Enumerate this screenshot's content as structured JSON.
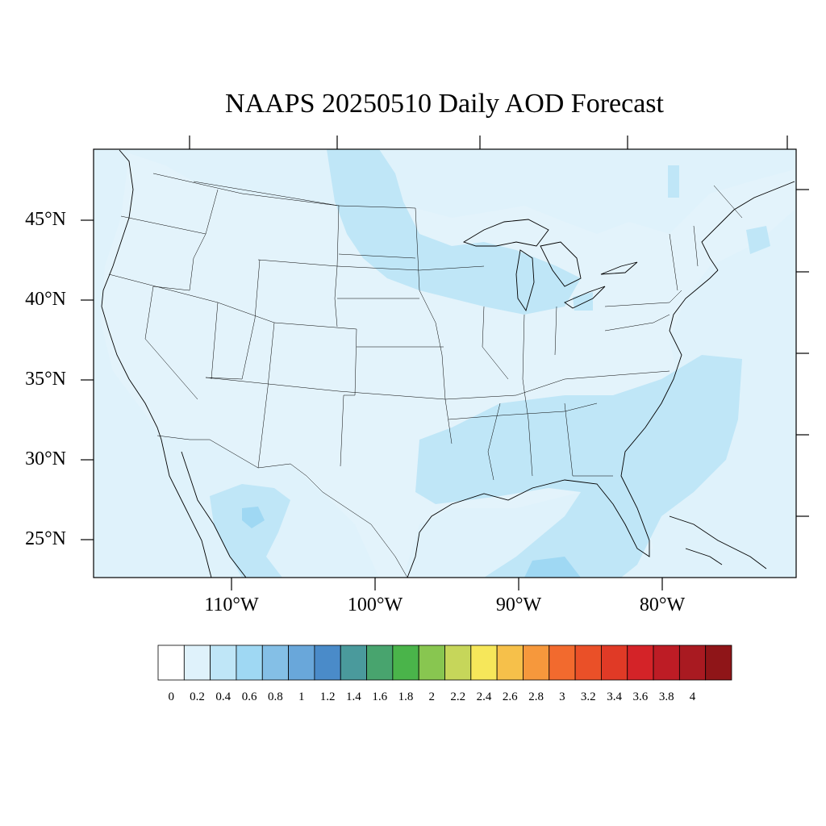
{
  "title": "NAAPS 20250510 Daily AOD Forecast",
  "lat_labels": [
    "45°N",
    "40°N",
    "35°N",
    "30°N",
    "25°N"
  ],
  "lon_labels": [
    "110°W",
    "100°W",
    "90°W",
    "80°W"
  ],
  "colorbar": {
    "labels": [
      "0",
      "0.2",
      "0.4",
      "0.6",
      "0.8",
      "1",
      "1.2",
      "1.4",
      "1.6",
      "1.8",
      "2",
      "2.2",
      "2.4",
      "2.6",
      "2.8",
      "3",
      "3.2",
      "3.4",
      "3.6",
      "3.8",
      "4"
    ],
    "colors": [
      "#ffffff",
      "#dff2fb",
      "#bfe6f7",
      "#9fd8f3",
      "#84bfe6",
      "#69a7da",
      "#4a8bc9",
      "#4a9a9c",
      "#48a46e",
      "#4ab44a",
      "#88c650",
      "#c6d65a",
      "#f6e75a",
      "#f6c04a",
      "#f6983c",
      "#f26a2e",
      "#ea5028",
      "#e03a26",
      "#d42328",
      "#bd1c25",
      "#a91a21",
      "#8f1518"
    ]
  },
  "map": {
    "ocean_color": "#dff2fb",
    "plume_color_light": "#bfe6f7",
    "plume_color_mid": "#9fd8f3",
    "plume_color_strong": "#84cdee",
    "extent": {
      "lon": [
        -119,
        -70
      ],
      "lat": [
        22.5,
        49.5
      ]
    }
  }
}
